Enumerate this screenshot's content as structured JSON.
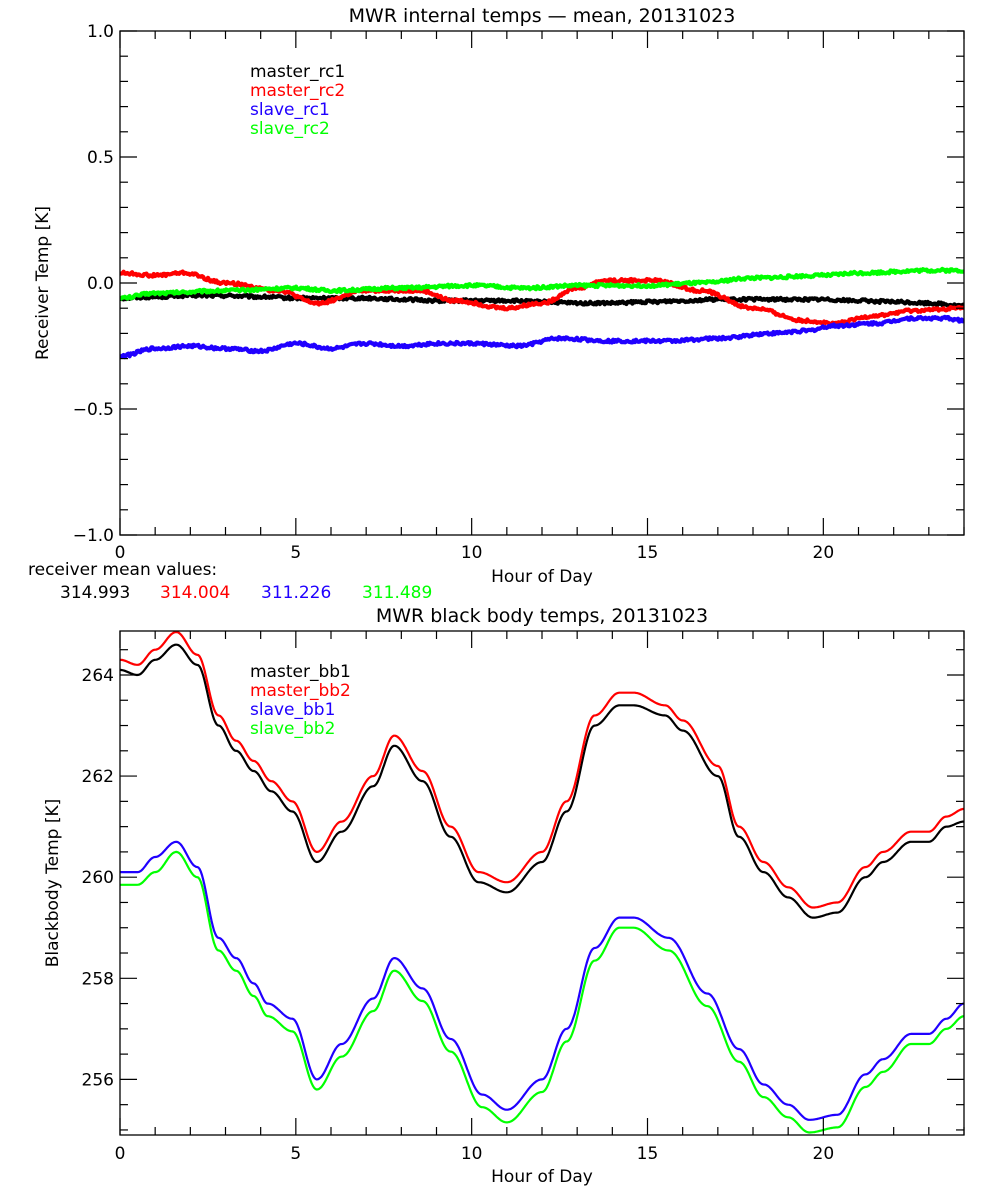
{
  "chart_data": [
    {
      "type": "line",
      "title": "MWR internal temps — mean, 20131023",
      "xlabel": "Hour of Day",
      "ylabel": "Receiver Temp [K]",
      "xlim": [
        0,
        24
      ],
      "ylim": [
        -1.0,
        1.0
      ],
      "xticks": [
        0,
        5,
        10,
        15,
        20
      ],
      "xtick_labels": [
        "0",
        "5",
        "10",
        "15",
        "20"
      ],
      "x_minor_step": 1,
      "yticks": [
        -1.0,
        -0.5,
        0.0,
        0.5,
        1.0
      ],
      "ytick_labels": [
        "−1.0",
        "−0.5",
        "0.0",
        "0.5",
        "1.0"
      ],
      "y_minor_step": 0.1,
      "grid": false,
      "legend_position": "top-left (inside)",
      "series": [
        {
          "name": "master_rc1",
          "color": "#000000",
          "x": [
            0,
            1,
            2,
            3,
            4,
            5,
            6,
            7,
            8,
            9,
            10,
            11,
            12,
            13,
            14,
            15,
            16,
            17,
            18,
            19,
            20,
            21,
            22,
            23,
            24
          ],
          "y": [
            -0.06,
            -0.055,
            -0.05,
            -0.05,
            -0.055,
            -0.06,
            -0.06,
            -0.06,
            -0.065,
            -0.07,
            -0.07,
            -0.07,
            -0.075,
            -0.08,
            -0.08,
            -0.075,
            -0.07,
            -0.065,
            -0.065,
            -0.065,
            -0.065,
            -0.07,
            -0.075,
            -0.08,
            -0.09
          ]
        },
        {
          "name": "master_rc2",
          "color": "#ff0000",
          "x": [
            0,
            1,
            1.8,
            3,
            4.5,
            5.6,
            7,
            8.5,
            9.5,
            11,
            12,
            13,
            13.8,
            15.2,
            16.5,
            18,
            19.5,
            20.3,
            21.5,
            22.5,
            24
          ],
          "y": [
            0.04,
            0.03,
            0.04,
            0.0,
            -0.03,
            -0.08,
            -0.03,
            -0.03,
            -0.07,
            -0.1,
            -0.08,
            -0.02,
            0.01,
            0.01,
            -0.03,
            -0.1,
            -0.15,
            -0.16,
            -0.13,
            -0.11,
            -0.1
          ]
        },
        {
          "name": "slave_rc1",
          "color": "#2000ff",
          "x": [
            0,
            1,
            2,
            3,
            4,
            5,
            6,
            7,
            8,
            9,
            10,
            11.3,
            12.5,
            14,
            15.5,
            17,
            18.5,
            19.5,
            20.3,
            21.5,
            22.5,
            23.5,
            24
          ],
          "y": [
            -0.29,
            -0.26,
            -0.25,
            -0.26,
            -0.27,
            -0.24,
            -0.26,
            -0.24,
            -0.25,
            -0.24,
            -0.24,
            -0.25,
            -0.22,
            -0.23,
            -0.23,
            -0.22,
            -0.2,
            -0.19,
            -0.17,
            -0.16,
            -0.14,
            -0.14,
            -0.15
          ]
        },
        {
          "name": "slave_rc2",
          "color": "#00ff00",
          "x": [
            0,
            1,
            3,
            5,
            6,
            8,
            10,
            11.5,
            13,
            15,
            16.5,
            18,
            20,
            21,
            23,
            24
          ],
          "y": [
            -0.06,
            -0.04,
            -0.03,
            -0.02,
            -0.03,
            -0.02,
            -0.01,
            -0.02,
            -0.01,
            -0.01,
            0.0,
            0.02,
            0.03,
            0.04,
            0.05,
            0.05
          ]
        }
      ],
      "annotation": {
        "label": "receiver mean values:",
        "values": [
          {
            "text": "314.993",
            "color": "#000000"
          },
          {
            "text": "314.004",
            "color": "#ff0000"
          },
          {
            "text": "311.226",
            "color": "#2000ff"
          },
          {
            "text": "311.489",
            "color": "#00ff00"
          }
        ]
      }
    },
    {
      "type": "line",
      "title": "MWR black body temps, 20131023",
      "xlabel": "Hour of Day",
      "ylabel": "Blackbody Temp [K]",
      "xlim": [
        0,
        24
      ],
      "ylim": [
        254.9,
        264.87
      ],
      "xticks": [
        0,
        5,
        10,
        15,
        20
      ],
      "xtick_labels": [
        "0",
        "5",
        "10",
        "15",
        "20"
      ],
      "x_minor_step": 1,
      "yticks": [
        256,
        258,
        260,
        262,
        264
      ],
      "ytick_labels": [
        "256",
        "258",
        "260",
        "262",
        "264"
      ],
      "y_minor_step": 0.5,
      "grid": false,
      "legend_position": "top-left (inside)",
      "series": [
        {
          "name": "master_bb1",
          "color": "#000000",
          "x": [
            0,
            0.5,
            1,
            1.6,
            2.2,
            2.8,
            3.3,
            3.8,
            4.3,
            4.9,
            5.6,
            6.3,
            7.2,
            7.8,
            8.6,
            9.4,
            10.2,
            11.0,
            12.0,
            12.7,
            13.5,
            14.2,
            14.6,
            15.5,
            16.0,
            17.0,
            17.6,
            18.3,
            19.0,
            19.7,
            20.4,
            21.2,
            21.7,
            22.5,
            23.0,
            23.5,
            24
          ],
          "y": [
            264.1,
            264.0,
            264.3,
            264.6,
            264.2,
            263.0,
            262.5,
            262.1,
            261.7,
            261.3,
            260.3,
            260.9,
            261.8,
            262.6,
            261.9,
            260.8,
            259.9,
            259.7,
            260.3,
            261.3,
            263.0,
            263.4,
            263.4,
            263.2,
            262.9,
            262.0,
            260.8,
            260.1,
            259.6,
            259.2,
            259.3,
            260.0,
            260.3,
            260.7,
            260.7,
            261.0,
            261.1
          ]
        },
        {
          "name": "master_bb2",
          "color": "#ff0000",
          "x": [
            0,
            0.5,
            1,
            1.6,
            2.2,
            2.8,
            3.3,
            3.8,
            4.3,
            4.9,
            5.6,
            6.3,
            7.2,
            7.8,
            8.6,
            9.4,
            10.2,
            11.0,
            12.0,
            12.7,
            13.5,
            14.2,
            14.6,
            15.5,
            16.0,
            17.0,
            17.6,
            18.3,
            19.0,
            19.7,
            20.4,
            21.2,
            21.7,
            22.5,
            23.0,
            23.5,
            24
          ],
          "y": [
            264.3,
            264.2,
            264.5,
            264.85,
            264.4,
            263.2,
            262.7,
            262.3,
            261.9,
            261.5,
            260.5,
            261.1,
            262.0,
            262.8,
            262.1,
            261.0,
            260.1,
            259.9,
            260.5,
            261.5,
            263.2,
            263.65,
            263.65,
            263.4,
            263.1,
            262.2,
            261.0,
            260.3,
            259.8,
            259.4,
            259.5,
            260.2,
            260.5,
            260.9,
            260.9,
            261.2,
            261.35
          ]
        },
        {
          "name": "slave_bb1",
          "color": "#2000ff",
          "x": [
            0,
            0.5,
            1,
            1.6,
            2.2,
            2.8,
            3.3,
            3.8,
            4.2,
            4.9,
            5.6,
            6.3,
            7.2,
            7.8,
            8.6,
            9.4,
            10.3,
            11.0,
            12.0,
            12.7,
            13.5,
            14.2,
            14.6,
            15.6,
            16.7,
            17.6,
            18.3,
            19.0,
            19.6,
            20.4,
            21.2,
            21.7,
            22.5,
            23.0,
            23.5,
            24
          ],
          "y": [
            260.1,
            260.1,
            260.4,
            260.7,
            260.2,
            258.8,
            258.4,
            257.9,
            257.5,
            257.2,
            256.0,
            256.7,
            257.6,
            258.4,
            257.8,
            256.8,
            255.7,
            255.4,
            256.0,
            257.0,
            258.6,
            259.2,
            259.2,
            258.8,
            257.7,
            256.6,
            255.9,
            255.5,
            255.2,
            255.3,
            256.1,
            256.4,
            256.9,
            256.9,
            257.2,
            257.5
          ]
        },
        {
          "name": "slave_bb2",
          "color": "#00ff00",
          "x": [
            0,
            0.5,
            1,
            1.6,
            2.2,
            2.8,
            3.3,
            3.8,
            4.2,
            4.9,
            5.6,
            6.3,
            7.2,
            7.8,
            8.6,
            9.4,
            10.3,
            11.0,
            12.0,
            12.7,
            13.5,
            14.2,
            14.6,
            15.6,
            16.7,
            17.6,
            18.3,
            19.0,
            19.6,
            20.4,
            21.2,
            21.7,
            22.5,
            23.0,
            23.5,
            24
          ],
          "y": [
            259.85,
            259.85,
            260.1,
            260.5,
            260.0,
            258.55,
            258.15,
            257.65,
            257.25,
            256.95,
            255.8,
            256.45,
            257.35,
            258.15,
            257.55,
            256.55,
            255.45,
            255.15,
            255.75,
            256.75,
            258.35,
            259.0,
            259.0,
            258.55,
            257.45,
            256.35,
            255.65,
            255.25,
            254.95,
            255.05,
            255.85,
            256.15,
            256.7,
            256.7,
            257.0,
            257.25
          ]
        }
      ]
    }
  ]
}
